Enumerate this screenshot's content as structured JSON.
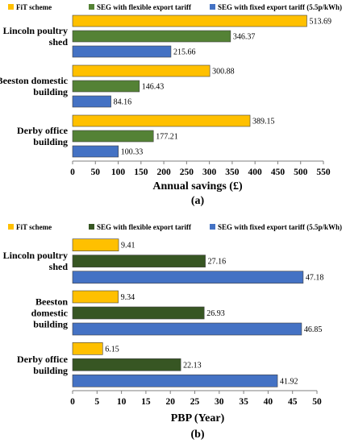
{
  "chart_data": [
    {
      "type": "bar",
      "orientation": "horizontal",
      "categories": [
        "Lincoln poultry shed",
        "Beeston domestic building",
        "Derby office building"
      ],
      "category_lines": [
        [
          "Lincoln poultry",
          "shed"
        ],
        [
          "Beeston domestic",
          "building"
        ],
        [
          "Derby office",
          "building"
        ]
      ],
      "series": [
        {
          "name": "FiT scheme",
          "color": "#FFC000",
          "values": [
            513.69,
            300.88,
            389.15
          ],
          "labels": [
            "513.69",
            "300.88",
            "389.15"
          ]
        },
        {
          "name": "SEG with flexible export tariff",
          "color": "#548235",
          "values": [
            346.37,
            146.43,
            177.21
          ],
          "labels": [
            "346.37",
            "146.43",
            "177.21"
          ]
        },
        {
          "name": "SEG with fixed export tariff (5.5p/kWh)",
          "color": "#4472C4",
          "values": [
            215.66,
            84.16,
            100.33
          ],
          "labels": [
            "215.66",
            "84.16",
            "100.33"
          ]
        }
      ],
      "xlabel": "Annual savings (£)",
      "xlim": [
        0,
        550
      ],
      "xticks": [
        "0",
        "50",
        "100",
        "150",
        "200",
        "250",
        "300",
        "350",
        "400",
        "450",
        "500",
        "550"
      ],
      "caption": "(a)",
      "legend_position": "top"
    },
    {
      "type": "bar",
      "orientation": "horizontal",
      "categories": [
        "Lincoln poultry shed",
        "Beeston domestic building",
        "Derby office building"
      ],
      "category_lines": [
        [
          "Lincoln poultry",
          "shed"
        ],
        [
          "Beeston",
          "domestic",
          "building"
        ],
        [
          "Derby office",
          "building"
        ]
      ],
      "series": [
        {
          "name": "FiT scheme",
          "color": "#FFC000",
          "values": [
            9.41,
            9.34,
            6.15
          ],
          "labels": [
            "9.41",
            "9.34",
            "6.15"
          ]
        },
        {
          "name": "SEG with flexible export tariff",
          "color": "#375623",
          "values": [
            27.16,
            26.93,
            22.13
          ],
          "labels": [
            "27.16",
            "26.93",
            "22.13"
          ]
        },
        {
          "name": "SEG with fixed export tariff (5.5p/kWh)",
          "color": "#4472C4",
          "values": [
            47.18,
            46.85,
            41.92
          ],
          "labels": [
            "47.18",
            "46.85",
            "41.92"
          ]
        }
      ],
      "xlabel": "PBP (Year)",
      "xlim": [
        0,
        50
      ],
      "xticks": [
        "0",
        "5",
        "10",
        "15",
        "20",
        "25",
        "30",
        "35",
        "40",
        "45",
        "50"
      ],
      "caption": "(b)",
      "legend_position": "top"
    }
  ]
}
